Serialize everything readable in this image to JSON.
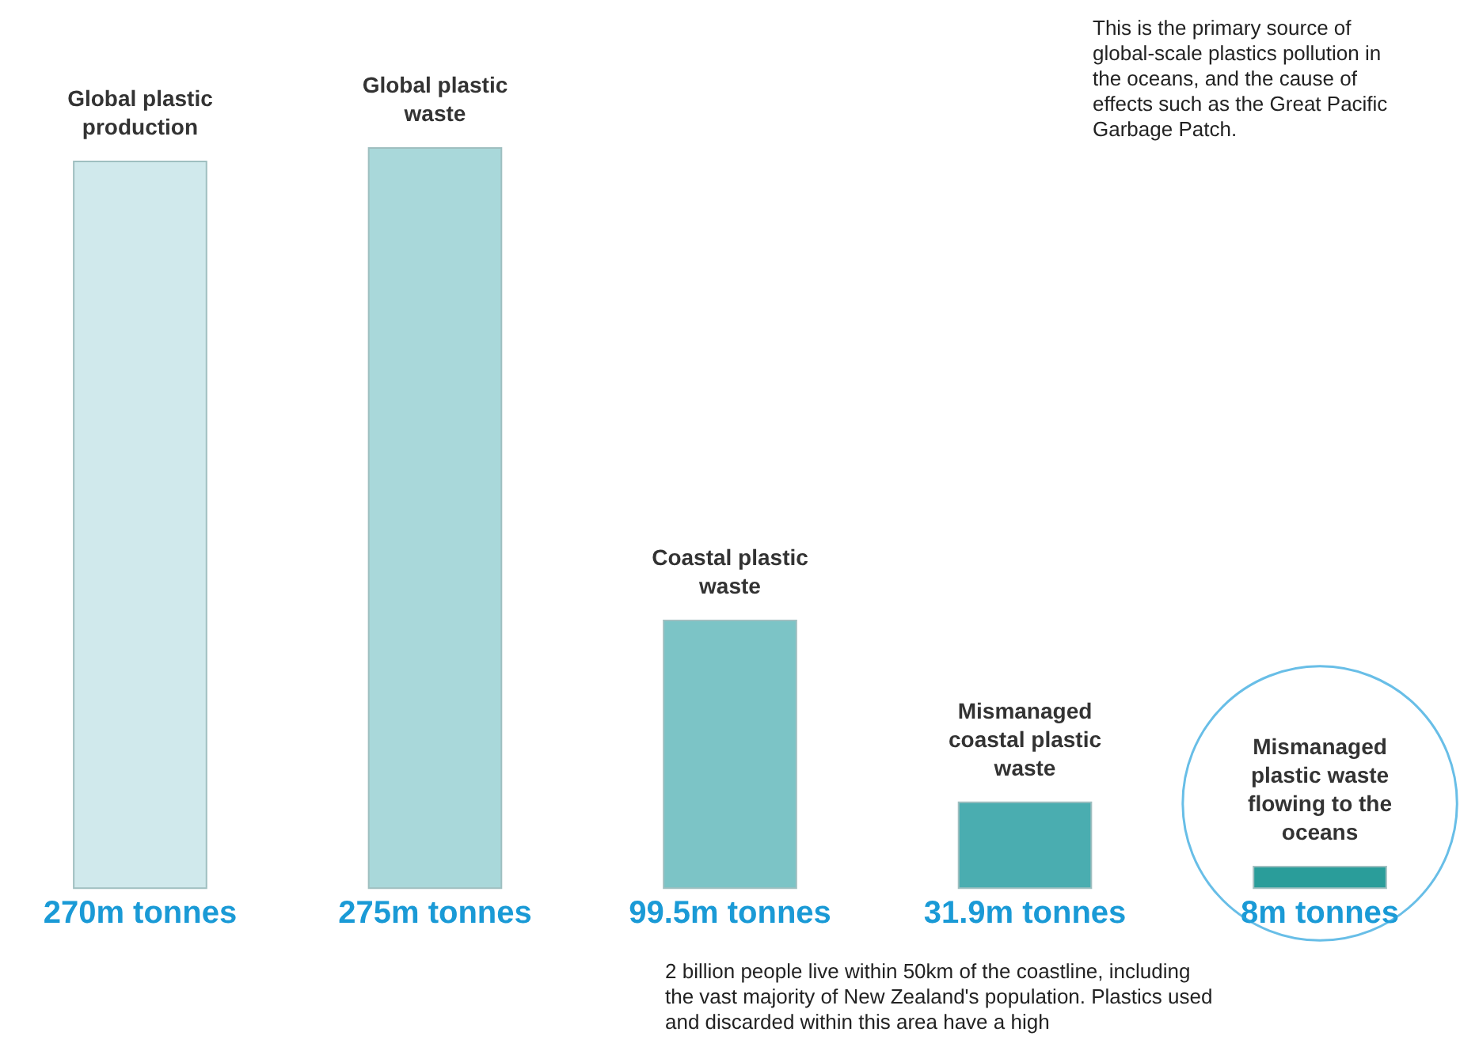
{
  "chart_data": {
    "type": "bar",
    "categories": [
      "Global plastic production",
      "Global plastic waste",
      "Coastal plastic waste",
      "Mismanaged coastal plastic waste",
      "Mismanaged plastic waste flowing to the oceans"
    ],
    "values": [
      270,
      275,
      99.5,
      31.9,
      8
    ],
    "colors": [
      "#d0e9ec",
      "#a9d8da",
      "#7cc4c6",
      "#4aadb0",
      "#2a9d9a"
    ],
    "value_labels": [
      "270m tonnes",
      "275m tonnes",
      "99.5m tonnes",
      "31.9m tonnes",
      "8m tonnes"
    ],
    "annotations": [
      "This is the primary source of global-scale plastics pollution in the oceans, and the cause of effects such as the Great Pacific Garbage Patch.",
      "2 billion people live within 50km of the coastline, including the vast majority of New Zealand's population. Plastics used and discarded within this area have a high"
    ]
  }
}
